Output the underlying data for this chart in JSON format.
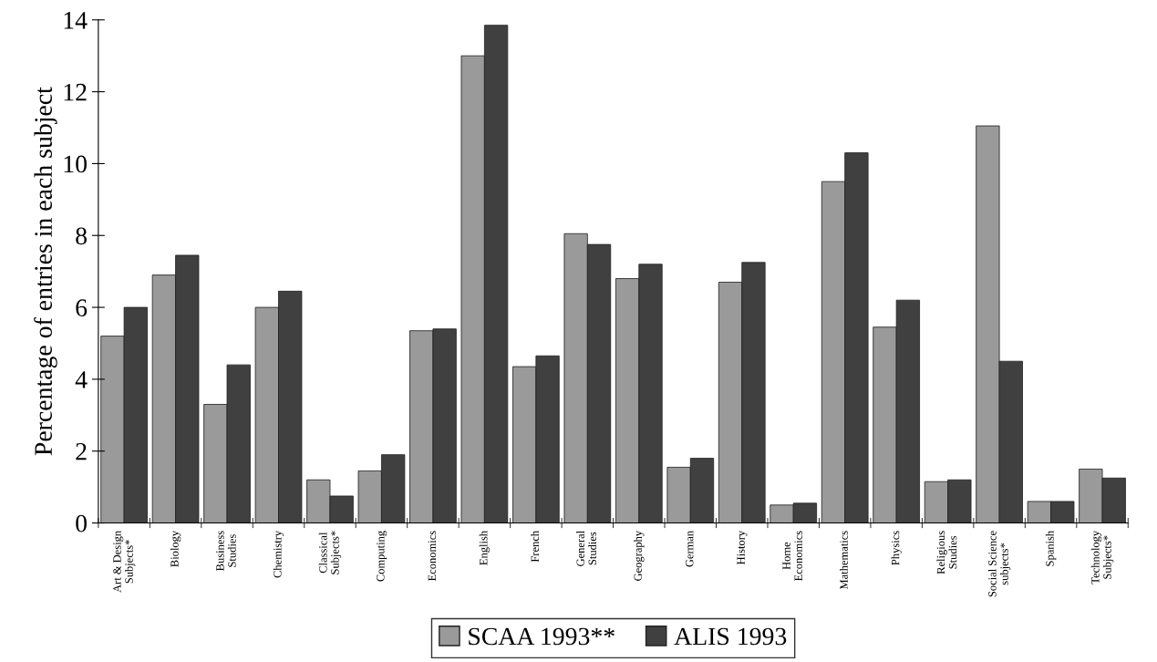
{
  "chart_data": {
    "type": "bar",
    "ylabel": "Percentage of entries in each subject",
    "categories": [
      "Art & Design\nSubjects*",
      "Biology",
      "Business\nStudies",
      "Chemistry",
      "Classical\nSubjects*",
      "Computing",
      "Economics",
      "English",
      "French",
      "General\nStudies",
      "Geography",
      "German",
      "History",
      "Home\nEconomics",
      "Mathematics",
      "Physics",
      "Religious\nStudies",
      "Social Science\nsubjects*",
      "Spanish",
      "Technology\nSubjects*"
    ],
    "series": [
      {
        "name": "SCAA 1993**",
        "color": "#9a9a9a",
        "values": [
          5.2,
          6.9,
          3.3,
          6.0,
          1.2,
          1.45,
          5.35,
          13.0,
          4.35,
          8.05,
          6.8,
          1.55,
          6.7,
          0.5,
          9.5,
          5.45,
          1.15,
          11.05,
          0.6,
          1.5
        ]
      },
      {
        "name": "ALIS 1993",
        "color": "#404040",
        "values": [
          6.0,
          7.45,
          4.4,
          6.45,
          0.75,
          1.9,
          5.4,
          13.85,
          4.65,
          7.75,
          7.2,
          1.8,
          7.25,
          0.55,
          10.3,
          6.2,
          1.2,
          4.5,
          0.6,
          1.25
        ]
      }
    ],
    "ylim": [
      0,
      14
    ],
    "yticks": [
      0,
      2,
      4,
      6,
      8,
      10,
      12,
      14
    ],
    "grid": false,
    "legend": "bottom"
  }
}
